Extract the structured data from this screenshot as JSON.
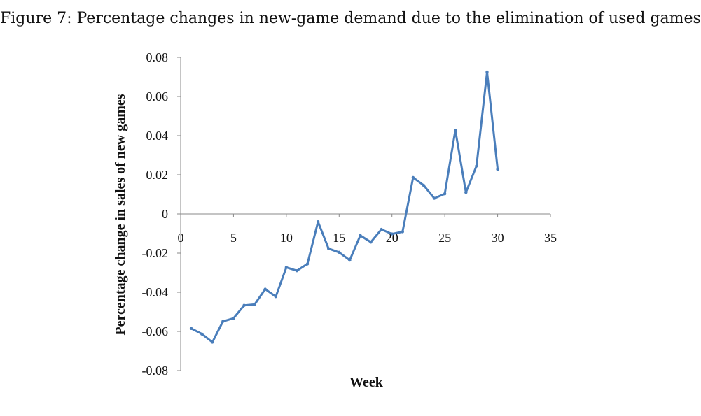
{
  "figure": {
    "title": "Figure 7: Percentage changes in new-game demand due to the elimination of used games"
  },
  "chart_data": {
    "type": "line",
    "title": "",
    "xlabel": "Week",
    "ylabel": "Percentage change in sales of new games",
    "xlim": [
      0,
      35
    ],
    "ylim": [
      -0.08,
      0.08
    ],
    "x_ticks": [
      0,
      5,
      10,
      15,
      20,
      25,
      30,
      35
    ],
    "x_tick_labels": [
      "0",
      "5",
      "10",
      "15",
      "20",
      "25",
      "30",
      "35"
    ],
    "y_ticks": [
      0.08,
      0.06,
      0.04,
      0.02,
      0,
      -0.02,
      -0.04,
      -0.06,
      -0.08
    ],
    "y_tick_labels": [
      "0.08",
      "0.06",
      "0.04",
      "0.02",
      "0",
      "-0.02",
      "-0.04",
      "-0.06",
      "-0.08"
    ],
    "grid": false,
    "legend": "none",
    "series_color": "#4a7ebb",
    "series": [
      {
        "x": [
          1,
          2,
          3,
          4,
          5,
          6,
          7,
          8,
          9,
          10,
          11,
          12,
          13,
          14,
          15,
          16,
          17,
          18,
          19,
          20,
          21,
          22,
          23,
          24,
          25,
          26,
          27,
          28,
          29,
          30
        ],
        "values": [
          -0.0585,
          -0.0613,
          -0.0655,
          -0.0549,
          -0.0533,
          -0.0467,
          -0.0462,
          -0.0384,
          -0.0422,
          -0.0273,
          -0.029,
          -0.0255,
          -0.004,
          -0.0177,
          -0.0196,
          -0.0236,
          -0.011,
          -0.0144,
          -0.0079,
          -0.0102,
          -0.0091,
          0.0186,
          0.0146,
          0.008,
          0.0103,
          0.0428,
          0.011,
          0.0245,
          0.0725,
          0.0228
        ]
      }
    ]
  }
}
